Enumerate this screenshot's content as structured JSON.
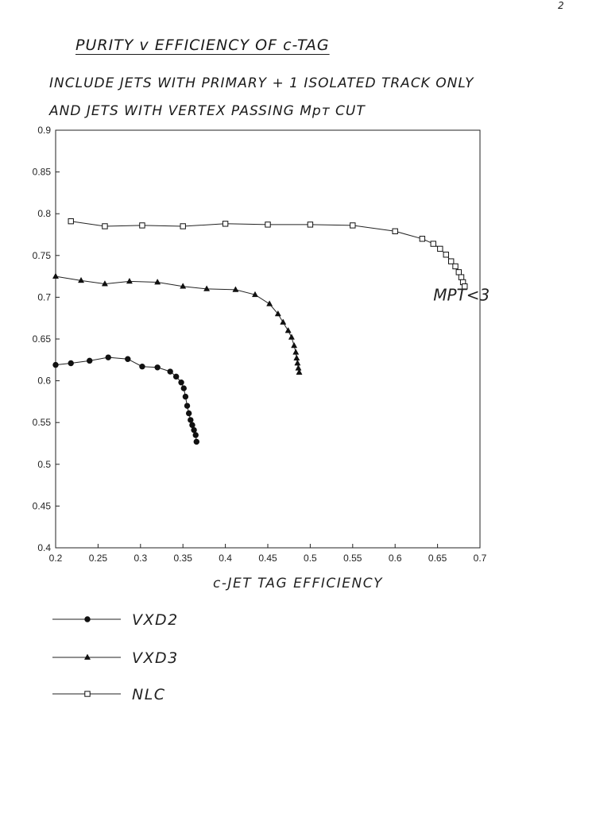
{
  "page": {
    "title": "PURITY v EFFICIENCY OF c-TAG",
    "subtitle_line1": "INCLUDE JETS WITH PRIMARY + 1 ISOLATED TRACK ONLY",
    "subtitle_line2": "AND JETS WITH VERTEX PASSING Mpт CUT",
    "corner_mark": "2"
  },
  "chart_data": {
    "type": "line",
    "title": "PURITY v EFFICIENCY OF c-TAG",
    "xlabel": "c-JET TAG EFFICIENCY",
    "ylabel": "",
    "xlim": [
      0.2,
      0.7
    ],
    "ylim": [
      0.4,
      0.9
    ],
    "xticks": [
      "0.2",
      "0.25",
      "0.3",
      "0.35",
      "0.4",
      "0.45",
      "0.5",
      "0.55",
      "0.6",
      "0.65",
      "0.7"
    ],
    "yticks": [
      "0.4",
      "0.45",
      "0.5",
      "0.55",
      "0.6",
      "0.65",
      "0.7",
      "0.75",
      "0.8",
      "0.85",
      "0.9"
    ],
    "grid": false,
    "legend_position": "bottom-left, below plot",
    "annotation": {
      "text": "MPT<3",
      "x": 0.645,
      "y": 0.696
    },
    "series": [
      {
        "name": "VXD2",
        "marker": "filled-circle",
        "x": [
          0.2,
          0.218,
          0.24,
          0.262,
          0.285,
          0.302,
          0.32,
          0.335,
          0.342,
          0.348,
          0.351,
          0.353,
          0.355,
          0.357,
          0.359,
          0.361,
          0.363,
          0.365,
          0.366
        ],
        "y": [
          0.619,
          0.621,
          0.624,
          0.628,
          0.626,
          0.617,
          0.616,
          0.611,
          0.605,
          0.598,
          0.591,
          0.581,
          0.57,
          0.561,
          0.553,
          0.547,
          0.541,
          0.535,
          0.527
        ]
      },
      {
        "name": "VXD3",
        "marker": "filled-triangle",
        "x": [
          0.2,
          0.23,
          0.258,
          0.287,
          0.32,
          0.35,
          0.378,
          0.412,
          0.435,
          0.452,
          0.462,
          0.468,
          0.474,
          0.478,
          0.481,
          0.483,
          0.484,
          0.485,
          0.486,
          0.487
        ],
        "y": [
          0.725,
          0.72,
          0.716,
          0.719,
          0.718,
          0.713,
          0.71,
          0.709,
          0.703,
          0.692,
          0.68,
          0.67,
          0.66,
          0.652,
          0.642,
          0.634,
          0.627,
          0.621,
          0.615,
          0.61
        ]
      },
      {
        "name": "NLC",
        "marker": "open-square",
        "x": [
          0.218,
          0.258,
          0.302,
          0.35,
          0.4,
          0.45,
          0.5,
          0.55,
          0.6,
          0.632,
          0.645,
          0.653,
          0.66,
          0.666,
          0.671,
          0.675,
          0.678,
          0.68,
          0.682
        ],
        "y": [
          0.791,
          0.785,
          0.786,
          0.785,
          0.788,
          0.787,
          0.787,
          0.786,
          0.779,
          0.77,
          0.764,
          0.758,
          0.751,
          0.743,
          0.737,
          0.73,
          0.724,
          0.718,
          0.713
        ]
      }
    ]
  }
}
